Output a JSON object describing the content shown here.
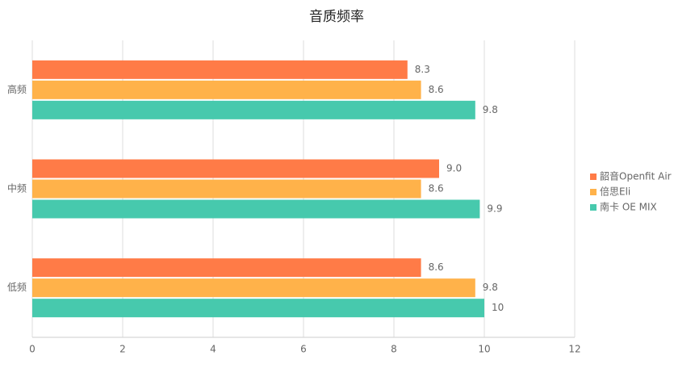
{
  "chart_data": {
    "type": "bar",
    "orientation": "horizontal",
    "title": "音质频率",
    "categories": [
      "高频",
      "中频",
      "低频"
    ],
    "series": [
      {
        "name": "韶音Openfit Air",
        "color": "#ff7b47",
        "values": [
          8.3,
          9.0,
          8.6
        ],
        "value_labels": [
          "8.3",
          "9.0",
          "8.6"
        ]
      },
      {
        "name": "倍思Eli",
        "color": "#ffb24a",
        "values": [
          8.6,
          8.6,
          9.8
        ],
        "value_labels": [
          "8.6",
          "8.6",
          "9.8"
        ]
      },
      {
        "name": "南卡 OE MIX",
        "color": "#47c9ad",
        "values": [
          9.8,
          9.9,
          10
        ],
        "value_labels": [
          "9.8",
          "9.9",
          "10"
        ]
      }
    ],
    "xlim": [
      0,
      12
    ],
    "xticks": [
      0,
      2,
      4,
      6,
      8,
      10,
      12
    ],
    "grid": true,
    "legend": "right"
  }
}
